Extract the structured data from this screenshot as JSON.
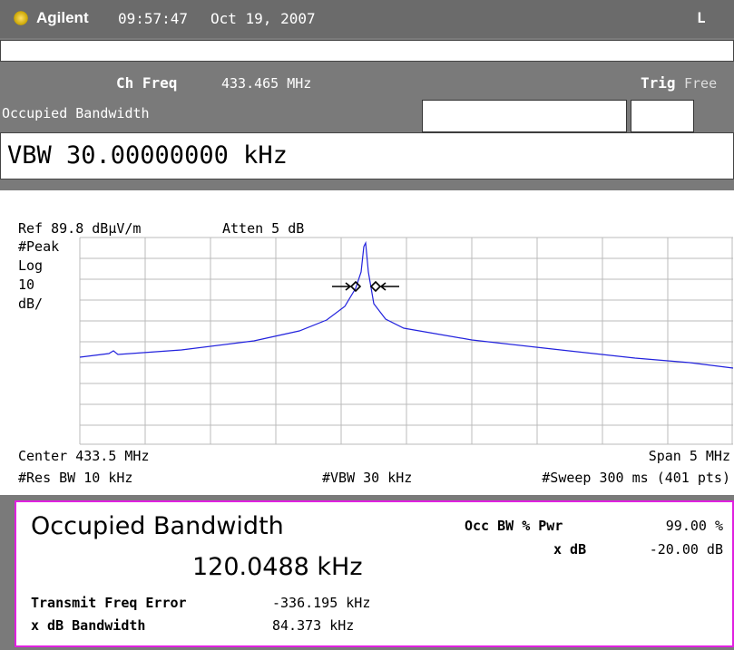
{
  "header": {
    "brand": "Agilent",
    "time": "09:57:47",
    "date": "Oct 19, 2007",
    "mode": "L"
  },
  "settings": {
    "ch_freq_label": "Ch Freq",
    "ch_freq_value": "433.465 MHz",
    "trig_label": "Trig",
    "trig_value": "Free",
    "measurement": "Occupied Bandwidth",
    "active_function": "VBW 30.00000000 kHz"
  },
  "display": {
    "ref": "Ref 89.8 dBµV/m",
    "atten": "Atten 5 dB",
    "detector": "#Peak",
    "scale_type": "Log",
    "scale_value": "10",
    "scale_unit": "dB/",
    "center": "Center 433.5 MHz",
    "span": "Span 5 MHz",
    "res_bw": "#Res BW 10 kHz",
    "vbw": "#VBW 30 kHz",
    "sweep": "#Sweep 300 ms (401 pts)"
  },
  "results": {
    "title": "Occupied Bandwidth",
    "occupied_bw": "120.0488 kHz",
    "occ_bw_pwr_label": "Occ BW % Pwr",
    "occ_bw_pwr_value": "99.00 %",
    "xdb_label": "x dB",
    "xdb_value": "-20.00 dB",
    "freq_error_label": "Transmit Freq Error",
    "freq_error_value": "-336.195 kHz",
    "xdb_bw_label": "x dB Bandwidth",
    "xdb_bw_value": "84.373 kHz"
  }
}
